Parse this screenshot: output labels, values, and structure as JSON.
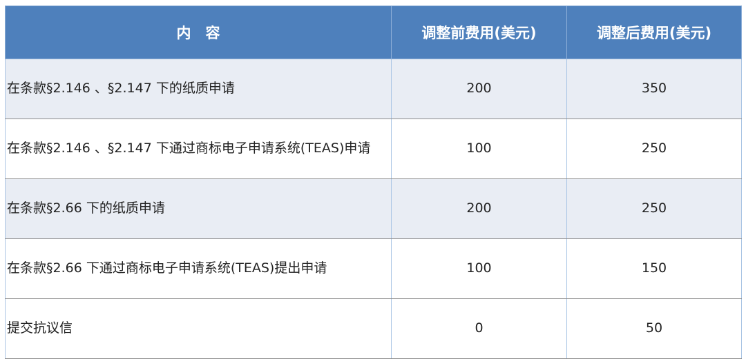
{
  "table": {
    "header": [
      "内　容",
      "调整前费用(美元)",
      "调整后费用(美元)"
    ],
    "rows": [
      [
        "在条款§2.146 、§2.147 下的纸质申请",
        "200",
        "350"
      ],
      [
        "在条款§2.146 、§2.147 下通过商标电子申请系统(TEAS)申请",
        "100",
        "250"
      ],
      [
        "在条款§2.66 下的纸质申请",
        "200",
        "250"
      ],
      [
        "在条款§2.66 下通过商标电子申请系统(TEAS)提出申请",
        "100",
        "150"
      ],
      [
        "提交抗议信",
        "0",
        "50"
      ]
    ]
  }
}
